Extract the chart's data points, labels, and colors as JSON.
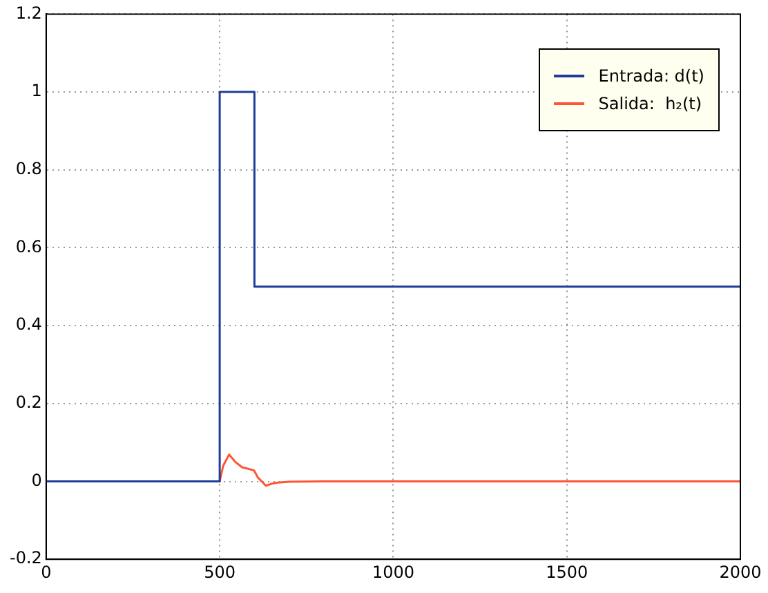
{
  "chart_data": {
    "type": "line",
    "xlim": [
      0,
      2000
    ],
    "xticks": [
      0,
      500,
      1000,
      1500,
      2000
    ],
    "ylim": [
      -0.2,
      1.2
    ],
    "yticks": [
      -0.2,
      0,
      0.2,
      0.4,
      0.6,
      0.8,
      1,
      1.2
    ],
    "grid": true,
    "legend": "top right",
    "marker": "none",
    "line_style": "solid",
    "series": [
      {
        "name": "Entrada: d(t)",
        "type": "step",
        "color": "#1f3c99",
        "x": [
          0,
          500,
          600,
          2000
        ],
        "values": [
          0,
          1,
          0.5,
          0.5
        ]
      },
      {
        "name": "Salida:  h₂(t)",
        "color": "#ff5533",
        "x": [
          0,
          500,
          510,
          527,
          545,
          565,
          580,
          599,
          610,
          633,
          650,
          667,
          700,
          800,
          1000,
          1500,
          2000
        ],
        "values": [
          0,
          0,
          0.04,
          0.069,
          0.05,
          0.036,
          0.033,
          0.028,
          0.01,
          -0.011,
          -0.006,
          -0.003,
          -0.001,
          0,
          0,
          0,
          0
        ]
      }
    ]
  }
}
